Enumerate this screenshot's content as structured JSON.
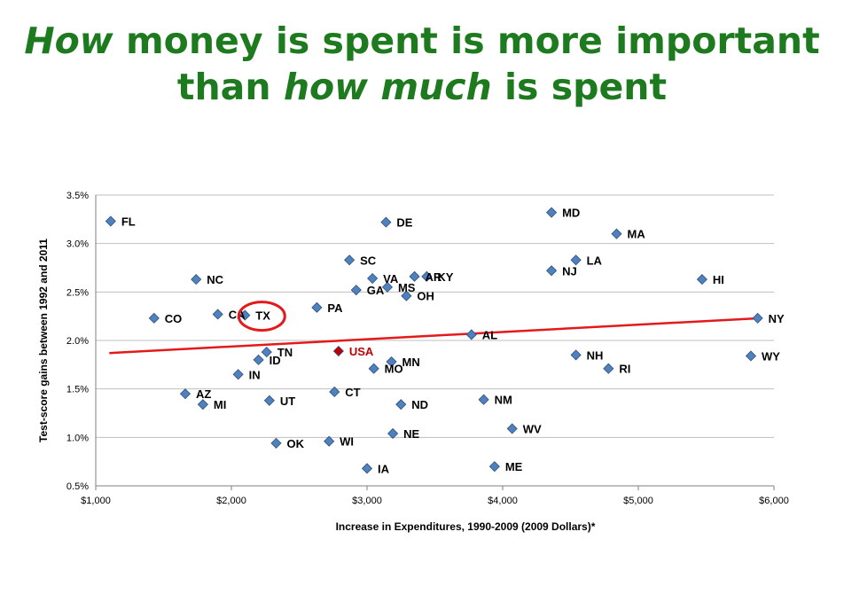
{
  "title": {
    "line1_em": "How",
    "line1_rest": " money is spent is more important",
    "line2_pre": "than ",
    "line2_em": "how much",
    "line2_post": " is spent"
  },
  "colors": {
    "title": "#1e7a1e",
    "point": "#4f81bd",
    "highlight_point": "#c00000",
    "trendline": "#e31a1c",
    "circle": "#e31a1c"
  },
  "chart_data": {
    "type": "scatter",
    "xlabel": "Increase in Expenditures, 1990-2009 (2009 Dollars)*",
    "ylabel": "Test-score gains between 1992 and 2011",
    "xlim": [
      1000,
      6000
    ],
    "ylim": [
      0.5,
      3.5
    ],
    "x_ticks": [
      1000,
      2000,
      3000,
      4000,
      5000,
      6000
    ],
    "x_tick_labels": [
      "$1,000",
      "$2,000",
      "$3,000",
      "$4,000",
      "$5,000",
      "$6,000"
    ],
    "y_ticks": [
      0.5,
      1.0,
      1.5,
      2.0,
      2.5,
      3.0,
      3.5
    ],
    "y_tick_labels": [
      "0.5%",
      "1.0%",
      "1.5%",
      "2.0%",
      "2.5%",
      "3.0%",
      "3.5%"
    ],
    "grid": "horizontal",
    "trendline": {
      "x": [
        1100,
        5900
      ],
      "y": [
        1.87,
        2.23
      ]
    },
    "highlighted_label": "TX",
    "points": [
      {
        "label": "FL",
        "x": 1110,
        "y": 3.23
      },
      {
        "label": "DE",
        "x": 3140,
        "y": 3.22
      },
      {
        "label": "MD",
        "x": 4360,
        "y": 3.32
      },
      {
        "label": "MA",
        "x": 4840,
        "y": 3.1
      },
      {
        "label": "SC",
        "x": 2870,
        "y": 2.83
      },
      {
        "label": "LA",
        "x": 4540,
        "y": 2.83
      },
      {
        "label": "AR",
        "x": 3350,
        "y": 2.66
      },
      {
        "label": "KY",
        "x": 3440,
        "y": 2.66
      },
      {
        "label": "NJ",
        "x": 4360,
        "y": 2.72
      },
      {
        "label": "VA",
        "x": 3040,
        "y": 2.64
      },
      {
        "label": "NC",
        "x": 1740,
        "y": 2.63
      },
      {
        "label": "HI",
        "x": 5470,
        "y": 2.63
      },
      {
        "label": "GA",
        "x": 2920,
        "y": 2.52
      },
      {
        "label": "MS",
        "x": 3150,
        "y": 2.55
      },
      {
        "label": "OH",
        "x": 3290,
        "y": 2.46
      },
      {
        "label": "PA",
        "x": 2630,
        "y": 2.34
      },
      {
        "label": "CA",
        "x": 1900,
        "y": 2.27
      },
      {
        "label": "TX",
        "x": 2100,
        "y": 2.26
      },
      {
        "label": "CO",
        "x": 1430,
        "y": 2.23
      },
      {
        "label": "NY",
        "x": 5880,
        "y": 2.23
      },
      {
        "label": "AL",
        "x": 3770,
        "y": 2.06
      },
      {
        "label": "USA",
        "x": 2790,
        "y": 1.89,
        "highlight": true
      },
      {
        "label": "TN",
        "x": 2260,
        "y": 1.88
      },
      {
        "label": "ID",
        "x": 2200,
        "y": 1.8
      },
      {
        "label": "MN",
        "x": 3180,
        "y": 1.78
      },
      {
        "label": "NH",
        "x": 4540,
        "y": 1.85
      },
      {
        "label": "WY",
        "x": 5830,
        "y": 1.84
      },
      {
        "label": "MO",
        "x": 3050,
        "y": 1.71
      },
      {
        "label": "RI",
        "x": 4780,
        "y": 1.71
      },
      {
        "label": "IN",
        "x": 2050,
        "y": 1.65
      },
      {
        "label": "CT",
        "x": 2760,
        "y": 1.47
      },
      {
        "label": "AZ",
        "x": 1660,
        "y": 1.45
      },
      {
        "label": "MI",
        "x": 1790,
        "y": 1.34
      },
      {
        "label": "UT",
        "x": 2280,
        "y": 1.38
      },
      {
        "label": "NM",
        "x": 3860,
        "y": 1.39
      },
      {
        "label": "ND",
        "x": 3250,
        "y": 1.34
      },
      {
        "label": "WV",
        "x": 4070,
        "y": 1.09
      },
      {
        "label": "NE",
        "x": 3190,
        "y": 1.04
      },
      {
        "label": "OK",
        "x": 2330,
        "y": 0.94
      },
      {
        "label": "WI",
        "x": 2720,
        "y": 0.96
      },
      {
        "label": "IA",
        "x": 3000,
        "y": 0.68
      },
      {
        "label": "ME",
        "x": 3940,
        "y": 0.7
      }
    ]
  }
}
